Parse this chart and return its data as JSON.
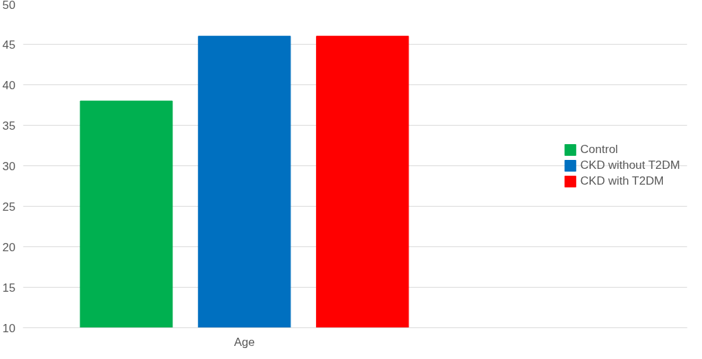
{
  "chart_data": {
    "type": "bar",
    "categories": [
      "Age"
    ],
    "series": [
      {
        "name": "Control",
        "color": "#00b050",
        "values": [
          38
        ]
      },
      {
        "name": "CKD without T2DM",
        "color": "#0070c0",
        "values": [
          46
        ]
      },
      {
        "name": "CKD with T2DM",
        "color": "#ff0000",
        "values": [
          46
        ]
      }
    ],
    "ylim": [
      10,
      50
    ],
    "yticks": [
      10,
      15,
      20,
      25,
      30,
      35,
      40,
      45,
      50
    ],
    "grid": "y",
    "legend": "right"
  }
}
